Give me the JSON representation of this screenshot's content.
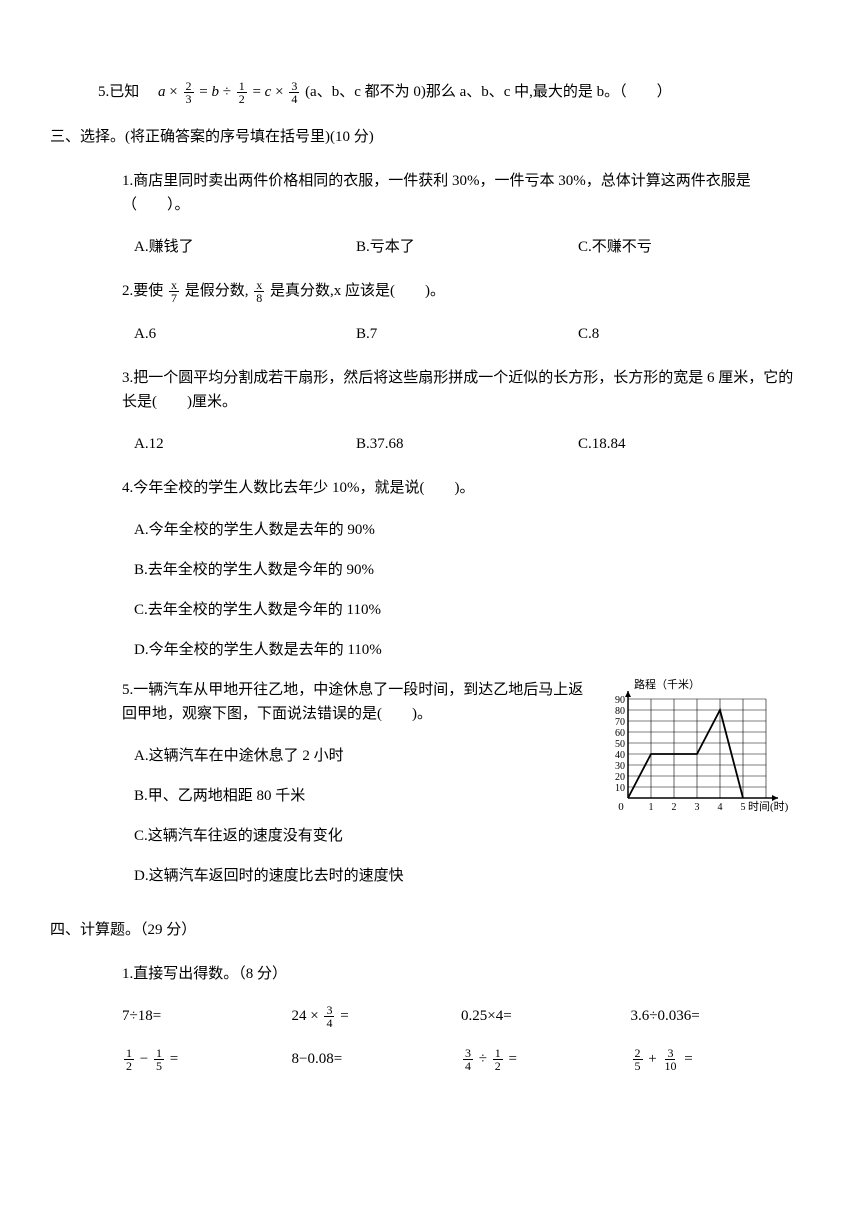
{
  "q_prev5": {
    "prefix": "5.已知",
    "equation_parts": [
      "a ×",
      "= b ÷",
      "= c ×"
    ],
    "fracs": [
      [
        "2",
        "3"
      ],
      [
        "1",
        "2"
      ],
      [
        "3",
        "4"
      ]
    ],
    "suffix": "(a、b、c 都不为 0)那么 a、b、c 中,最大的是 b。（　　）"
  },
  "section3": {
    "title": "三、选择。(将正确答案的序号填在括号里)(10 分)",
    "q1": {
      "stem": "1.商店里同时卖出两件价格相同的衣服，一件获利 30%，一件亏本 30%，总体计算这两件衣服是（　　）。",
      "a": "A.赚钱了",
      "b": "B.亏本了",
      "c": "C.不赚不亏"
    },
    "q2": {
      "stem_pre": "2.要使",
      "frac1": [
        "x",
        "7"
      ],
      "stem_mid1": "是假分数,",
      "frac2": [
        "x",
        "8"
      ],
      "stem_mid2": "是真分数,x 应该是(　　)。",
      "a": "A.6",
      "b": "B.7",
      "c": "C.8"
    },
    "q3": {
      "stem": "3.把一个圆平均分割成若干扇形，然后将这些扇形拼成一个近似的长方形，长方形的宽是 6 厘米，它的长是(　　)厘米。",
      "a": "A.12",
      "b": "B.37.68",
      "c": "C.18.84"
    },
    "q4": {
      "stem": "4.今年全校的学生人数比去年少 10%，就是说(　　)。",
      "a": "A.今年全校的学生人数是去年的 90%",
      "b": "B.去年全校的学生人数是今年的 90%",
      "c": "C.去年全校的学生人数是今年的 110%",
      "d": "D.今年全校的学生人数是去年的 110%"
    },
    "q5": {
      "stem": "5.一辆汽车从甲地开往乙地，中途休息了一段时间，到达乙地后马上返回甲地，观察下图，下面说法错误的是(　　)。",
      "a": "A.这辆汽车在中途休息了 2 小时",
      "b": "B.甲、乙两地相距 80 千米",
      "c": "C.这辆汽车往返的速度没有变化",
      "d": "D.这辆汽车返回时的速度比去时的速度快"
    }
  },
  "section4": {
    "title": "四、计算题。（29 分）",
    "q1_title": "1.直接写出得数。（8 分）",
    "row1": {
      "c1": "7÷18=",
      "c2_pre": "24 ×",
      "c2_frac": [
        "3",
        "4"
      ],
      "c2_post": " =",
      "c3": "0.25×4=",
      "c4": "3.6÷0.036="
    },
    "row2": {
      "c1_f1": [
        "1",
        "2"
      ],
      "c1_mid": " − ",
      "c1_f2": [
        "1",
        "5"
      ],
      "c1_post": " =",
      "c2": "8−0.08=",
      "c3_f1": [
        "3",
        "4"
      ],
      "c3_mid": " ÷ ",
      "c3_f2": [
        "1",
        "2"
      ],
      "c3_post": " =",
      "c4_f1": [
        "2",
        "5"
      ],
      "c4_mid": " + ",
      "c4_f2": [
        "3",
        "10"
      ],
      "c4_post": " ="
    }
  },
  "chart": {
    "y_label": "路程（千米）",
    "x_label": "时间(时)",
    "y_ticks": [
      "10",
      "20",
      "30",
      "40",
      "50",
      "60",
      "70",
      "80",
      "90"
    ],
    "x_ticks": [
      "1",
      "2",
      "3",
      "4",
      "5"
    ],
    "grid_color": "#000000",
    "line_color": "#000000",
    "background": "#ffffff",
    "points": [
      [
        0,
        0
      ],
      [
        1,
        40
      ],
      [
        2,
        40
      ],
      [
        3,
        40
      ],
      [
        4,
        80
      ],
      [
        5,
        0
      ]
    ]
  }
}
